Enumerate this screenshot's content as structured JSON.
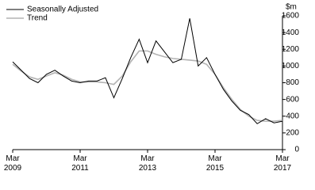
{
  "chart_data": {
    "type": "line",
    "y_unit": "$m",
    "categories": [
      "Mar 2009",
      null,
      null,
      null,
      null,
      null,
      null,
      null,
      "Mar 2011",
      null,
      null,
      null,
      null,
      null,
      null,
      null,
      "Mar 2013",
      null,
      null,
      null,
      null,
      null,
      null,
      null,
      "Mar 2015",
      null,
      null,
      null,
      null,
      null,
      null,
      null,
      "Mar 2017"
    ],
    "series": [
      {
        "name": "Seasonally Adjusted",
        "color": "#000000",
        "values": [
          1050,
          950,
          850,
          800,
          900,
          950,
          880,
          820,
          800,
          820,
          820,
          860,
          620,
          850,
          1100,
          1320,
          1040,
          1300,
          1170,
          1040,
          1080,
          1570,
          1000,
          1100,
          900,
          720,
          580,
          470,
          420,
          310,
          370,
          320,
          340
        ]
      },
      {
        "name": "Trend",
        "color": "#b3b3b3",
        "values": [
          1020,
          940,
          870,
          840,
          880,
          920,
          890,
          840,
          810,
          810,
          810,
          800,
          780,
          880,
          1050,
          1180,
          1180,
          1140,
          1110,
          1090,
          1080,
          1070,
          1060,
          1020,
          900,
          740,
          600,
          480,
          400,
          350,
          340,
          340,
          350
        ]
      }
    ],
    "ylim": [
      0,
      1600
    ],
    "yticks": [
      0,
      200,
      400,
      600,
      800,
      1000,
      1200,
      1400,
      1600
    ]
  }
}
